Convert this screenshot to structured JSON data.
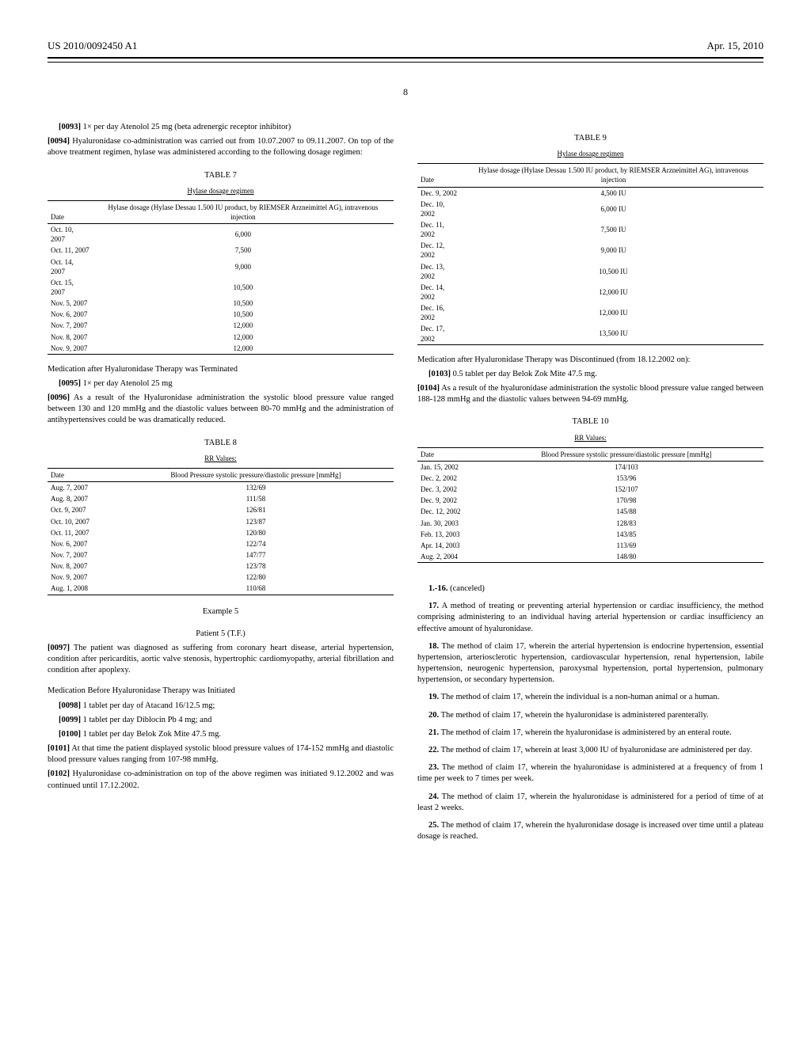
{
  "header": {
    "left": "US 2010/0092450 A1",
    "right": "Apr. 15, 2010"
  },
  "page_number": "8",
  "left_col": {
    "para0093": {
      "num": "[0093]",
      "text": "1× per day Atenolol 25 mg (beta adrenergic receptor inhibitor)"
    },
    "para0094": {
      "num": "[0094]",
      "text": "Hyaluronidase co-administration was carried out from 10.07.2007 to 09.11.2007. On top of the above treatment regimen, hylase was administered according to the following dosage regimen:"
    },
    "table7": {
      "label": "TABLE 7",
      "caption": "Hylase dosage regimen",
      "col1": "Date",
      "col2": "Hylase dosage (Hylase Dessau 1.500 IU product, by RIEMSER Arzneimittel AG), intravenous injection",
      "rows": [
        [
          "Oct. 10, 2007",
          "6,000"
        ],
        [
          "Oct. 11, 2007",
          "7,500"
        ],
        [
          "Oct. 14, 2007",
          "9,000"
        ],
        [
          "Oct. 15, 2007",
          "10,500"
        ],
        [
          "Nov. 5, 2007",
          "10,500"
        ],
        [
          "Nov. 6, 2007",
          "10,500"
        ],
        [
          "Nov. 7, 2007",
          "12,000"
        ],
        [
          "Nov. 8, 2007",
          "12,000"
        ],
        [
          "Nov. 9, 2007",
          "12,000"
        ]
      ]
    },
    "med_term_heading": "Medication after Hyaluronidase Therapy was Terminated",
    "para0095": {
      "num": "[0095]",
      "text": "1× per day Atenolol 25 mg"
    },
    "para0096": {
      "num": "[0096]",
      "text": "As a result of the Hyaluronidase administration the systolic blood pressure value ranged between 130 and 120 mmHg and the diastolic values between 80-70 mmHg and the administration of antihypertensives could be was dramatically reduced."
    },
    "table8": {
      "label": "TABLE 8",
      "caption": "RR Values:",
      "col1": "Date",
      "col2": "Blood Pressure systolic pressure/diastolic pressure [mmHg]",
      "rows": [
        [
          "Aug. 7, 2007",
          "132/69"
        ],
        [
          "Aug. 8, 2007",
          "111/58"
        ],
        [
          "Oct. 9, 2007",
          "126/81"
        ],
        [
          "Oct. 10, 2007",
          "123/87"
        ],
        [
          "Oct. 11, 2007",
          "120/80"
        ],
        [
          "Nov. 6, 2007",
          "122/74"
        ],
        [
          "Nov. 7, 2007",
          "147/77"
        ],
        [
          "Nov. 8, 2007",
          "123/78"
        ],
        [
          "Nov. 9, 2007",
          "122/80"
        ],
        [
          "Aug. 1, 2008",
          "110/68"
        ]
      ]
    },
    "example5_heading": "Example 5",
    "patient5_heading": "Patient 5 (T.F.)",
    "para0097": {
      "num": "[0097]",
      "text": "The patient was diagnosed as suffering from coronary heart disease, arterial hypertension, condition after pericarditis, aortic valve stenosis, hypertrophic cardiomyopathy, arterial fibrillation and condition after apoplexy."
    },
    "med_before_heading": "Medication Before Hyaluronidase Therapy was Initiated",
    "para0098": {
      "num": "[0098]",
      "text": "1 tablet per day of Atacand 16/12.5 mg;"
    },
    "para0099": {
      "num": "[0099]",
      "text": "1 tablet per day Diblocin Pb 4 mg; and"
    },
    "para0100": {
      "num": "[0100]",
      "text": "1 tablet per day Belok Zok Mite 47.5 mg."
    },
    "para0101": {
      "num": "[0101]",
      "text": "At that time the patient displayed systolic blood pressure values of 174-152 mmHg and diastolic blood pressure values ranging from 107-98 mmHg."
    },
    "para0102": {
      "num": "[0102]",
      "text": "Hyaluronidase co-administration on top of the above regimen was initiated 9.12.2002 and was continued until 17.12.2002."
    }
  },
  "right_col": {
    "table9": {
      "label": "TABLE 9",
      "caption": "Hylase dosage regimen",
      "col1": "Date",
      "col2": "Hylase dosage (Hylase Dessau 1.500 IU product, by RIEMSER Arzneimittel AG), intravenous injection",
      "rows": [
        [
          "Dec. 9, 2002",
          "4,500 IU"
        ],
        [
          "Dec. 10, 2002",
          "6,000 IU"
        ],
        [
          "Dec. 11, 2002",
          "7,500 IU"
        ],
        [
          "Dec. 12, 2002",
          "9,000 IU"
        ],
        [
          "Dec. 13, 2002",
          "10,500 IU"
        ],
        [
          "Dec. 14, 2002",
          "12,000 IU"
        ],
        [
          "Dec. 16, 2002",
          "12,000 IU"
        ],
        [
          "Dec. 17, 2002",
          "13,500 IU"
        ]
      ]
    },
    "med_disc_heading": "Medication after Hyaluronidase Therapy was Discontinued (from 18.12.2002 on):",
    "para0103": {
      "num": "[0103]",
      "text": "0.5 tablet per day Belok Zok Mite 47.5 mg."
    },
    "para0104": {
      "num": "[0104]",
      "text": "As a result of the hyaluronidase administration the systolic blood pressure value ranged between 188-128 mmHg and the diastolic values between 94-69 mmHg."
    },
    "table10": {
      "label": "TABLE 10",
      "caption": "RR Values:",
      "col1": "Date",
      "col2": "Blood Pressure systolic pressure/diastolic pressure [mmHg]",
      "rows": [
        [
          "Jan. 15, 2002",
          "174/103"
        ],
        [
          "Dec. 2, 2002",
          "153/96"
        ],
        [
          "Dec. 3, 2002",
          "152/107"
        ],
        [
          "Dec. 9, 2002",
          "170/98"
        ],
        [
          "Dec. 12, 2002",
          "145/88"
        ],
        [
          "Jan. 30, 2003",
          "128/83"
        ],
        [
          "Feb. 13, 2003",
          "143/85"
        ],
        [
          "Apr. 14, 2003",
          "113/69"
        ],
        [
          "Aug. 2, 2004",
          "148/80"
        ]
      ]
    },
    "claims": {
      "c1_16": {
        "num": "1.-16.",
        "text": "(canceled)"
      },
      "c17": {
        "num": "17.",
        "text": "A method of treating or preventing arterial hypertension or cardiac insufficiency, the method comprising administering to an individual having arterial hypertension or cardiac insufficiency an effective amount of hyaluronidase."
      },
      "c18": {
        "num": "18.",
        "text": "The method of claim 17, wherein the arterial hypertension is endocrine hypertension, essential hypertension, arteriosclerotic hypertension, cardiovascular hypertension, renal hypertension, labile hypertension, neurogenic hypertension, paroxysmal hypertension, portal hypertension, pulmonary hypertension, or secondary hypertension."
      },
      "c19": {
        "num": "19.",
        "text": "The method of claim 17, wherein the individual is a non-human animal or a human."
      },
      "c20": {
        "num": "20.",
        "text": "The method of claim 17, wherein the hyaluronidase is administered parenterally."
      },
      "c21": {
        "num": "21.",
        "text": "The method of claim 17, wherein the hyaluronidase is administered by an enteral route."
      },
      "c22": {
        "num": "22.",
        "text": "The method of claim 17, wherein at least 3,000 IU of hyaluronidase are administered per day."
      },
      "c23": {
        "num": "23.",
        "text": "The method of claim 17, wherein the hyaluronidase is administered at a frequency of from 1 time per week to 7 times per week."
      },
      "c24": {
        "num": "24.",
        "text": "The method of claim 17, wherein the hyaluronidase is administered for a period of time of at least 2 weeks."
      },
      "c25": {
        "num": "25.",
        "text": "The method of claim 17, wherein the hyaluronidase dosage is increased over time until a plateau dosage is reached."
      }
    }
  }
}
